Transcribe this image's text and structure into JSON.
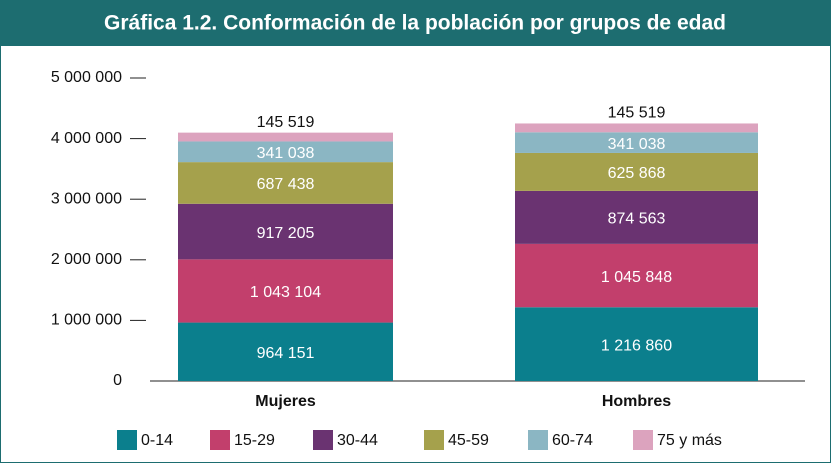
{
  "chart_data": {
    "type": "stacked_bar",
    "title": "Gráfica 1.2. Conformación de la población por grupos de edad",
    "categories": [
      "Mujeres",
      "Hombres"
    ],
    "series": [
      {
        "name": "0-14",
        "color": "#0b7f8d",
        "values": [
          964151,
          1216860
        ],
        "value_labels": [
          "964 151",
          "1 216 860"
        ]
      },
      {
        "name": "15-29",
        "color": "#c23f6c",
        "values": [
          1043104,
          1045848
        ],
        "value_labels": [
          "1 043 104",
          "1 045 848"
        ]
      },
      {
        "name": "30-44",
        "color": "#6a3371",
        "values": [
          917205,
          874563
        ],
        "value_labels": [
          "917 205",
          "874 563"
        ]
      },
      {
        "name": "45-59",
        "color": "#a5a14c",
        "values": [
          687438,
          625868
        ],
        "value_labels": [
          "687 438",
          "625 868"
        ]
      },
      {
        "name": "60-74",
        "color": "#8bb6c3",
        "values": [
          341038,
          341038
        ],
        "value_labels": [
          "341 038",
          "341 038"
        ]
      },
      {
        "name": "75 y más",
        "color": "#dca3be",
        "values": [
          145519,
          145519
        ],
        "value_labels": [
          "145 519",
          "145 519"
        ]
      }
    ],
    "ylim": [
      0,
      5000000
    ],
    "yticks": [
      0,
      {
        "value": 1000000,
        "label": "1 000 000"
      },
      {
        "value": 2000000,
        "label": "2 000 000"
      },
      {
        "value": 3000000,
        "label": "3 000 000"
      },
      {
        "value": 4000000,
        "label": "4 000 000"
      },
      {
        "value": 5000000,
        "label": "5 000 000"
      }
    ],
    "legend": "bottom"
  }
}
